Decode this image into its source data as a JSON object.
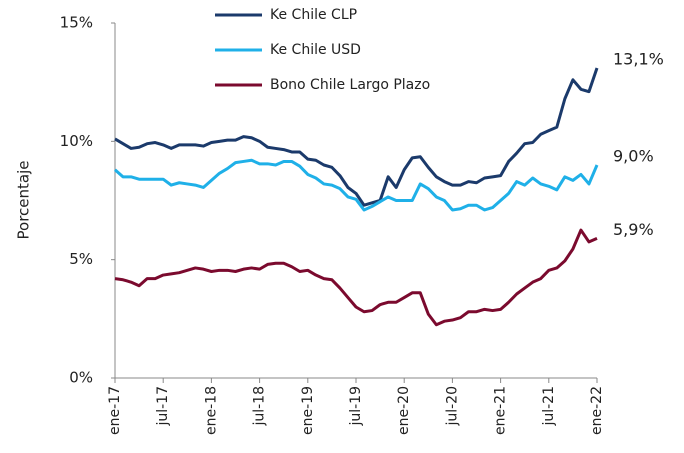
{
  "chart_data": {
    "type": "line",
    "y_label": "Porcentaje",
    "categories": [
      "ene-17",
      null,
      null,
      null,
      null,
      null,
      "jul-17",
      null,
      null,
      null,
      null,
      null,
      "ene-18",
      null,
      null,
      null,
      null,
      null,
      "jul-18",
      null,
      null,
      null,
      null,
      null,
      "ene-19",
      null,
      null,
      null,
      null,
      null,
      "jul-19",
      null,
      null,
      null,
      null,
      null,
      "ene-20",
      null,
      null,
      null,
      null,
      null,
      "jul-20",
      null,
      null,
      null,
      null,
      null,
      "ene-21",
      null,
      null,
      null,
      null,
      null,
      "jul-21",
      null,
      null,
      null,
      null,
      null,
      "ene-22"
    ],
    "ylim": [
      0,
      15
    ],
    "yticks": [
      {
        "value": 0,
        "label": "0%"
      },
      {
        "value": 5,
        "label": "5%"
      },
      {
        "value": 10,
        "label": "10%"
      },
      {
        "value": 15,
        "label": "15%"
      }
    ],
    "grid": false,
    "legend": "top-left",
    "series": [
      {
        "name": "Ke Chile CLP",
        "color": "#1b3a6b",
        "end_label": "13,1%",
        "values": [
          10.1,
          9.9,
          9.7,
          9.75,
          9.9,
          9.95,
          9.85,
          9.7,
          9.85,
          9.85,
          9.85,
          9.8,
          9.95,
          10.0,
          10.05,
          10.05,
          10.2,
          10.15,
          10.0,
          9.75,
          9.7,
          9.65,
          9.55,
          9.55,
          9.25,
          9.2,
          9.0,
          8.9,
          8.55,
          8.05,
          7.8,
          7.3,
          7.4,
          7.5,
          8.5,
          8.05,
          8.8,
          9.3,
          9.35,
          8.9,
          8.5,
          8.3,
          8.15,
          8.15,
          8.3,
          8.25,
          8.45,
          8.5,
          8.55,
          9.15,
          9.5,
          9.9,
          9.95,
          10.3,
          10.45,
          10.6,
          11.8,
          12.6,
          12.2,
          12.1,
          13.1
        ]
      },
      {
        "name": "Ke Chile USD",
        "color": "#1fb0e8",
        "end_label": "9,0%",
        "values": [
          8.8,
          8.5,
          8.5,
          8.4,
          8.4,
          8.4,
          8.4,
          8.15,
          8.25,
          8.2,
          8.15,
          8.05,
          8.35,
          8.65,
          8.85,
          9.1,
          9.15,
          9.2,
          9.05,
          9.05,
          9.0,
          9.15,
          9.15,
          8.95,
          8.6,
          8.45,
          8.2,
          8.15,
          8.0,
          7.65,
          7.55,
          7.1,
          7.25,
          7.45,
          7.65,
          7.5,
          7.5,
          7.5,
          8.2,
          8.0,
          7.65,
          7.5,
          7.1,
          7.15,
          7.3,
          7.3,
          7.1,
          7.2,
          7.5,
          7.8,
          8.3,
          8.15,
          8.45,
          8.2,
          8.1,
          7.95,
          8.5,
          8.35,
          8.6,
          8.2,
          9.0
        ]
      },
      {
        "name": "Bono Chile Largo Plazo",
        "color": "#7b0a2e",
        "end_label": "5,9%",
        "values": [
          4.2,
          4.15,
          4.05,
          3.9,
          4.2,
          4.2,
          4.35,
          4.4,
          4.45,
          4.55,
          4.65,
          4.6,
          4.5,
          4.55,
          4.55,
          4.5,
          4.6,
          4.65,
          4.6,
          4.8,
          4.85,
          4.85,
          4.7,
          4.5,
          4.55,
          4.35,
          4.2,
          4.15,
          3.8,
          3.4,
          3.0,
          2.8,
          2.85,
          3.1,
          3.2,
          3.2,
          3.4,
          3.6,
          3.6,
          2.7,
          2.25,
          2.4,
          2.45,
          2.55,
          2.8,
          2.8,
          2.9,
          2.85,
          2.9,
          3.2,
          3.55,
          3.8,
          4.05,
          4.2,
          4.55,
          4.65,
          4.95,
          5.45,
          6.25,
          5.75,
          5.9
        ]
      }
    ]
  }
}
